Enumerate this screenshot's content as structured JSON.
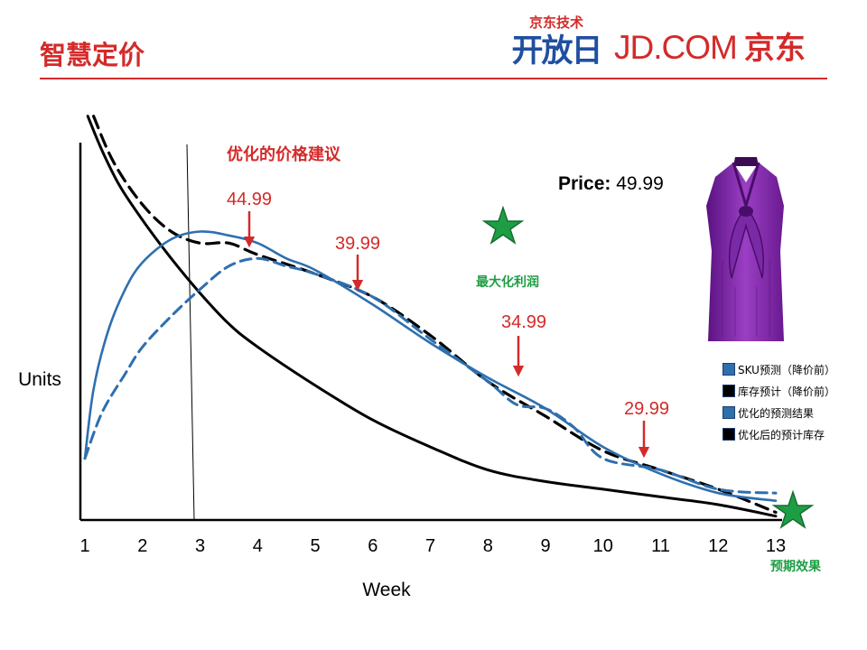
{
  "slide": {
    "title": "智慧定价",
    "logo_tech_top": "京东技术",
    "logo_tech_main": "开放日",
    "logo_en": "JD.COM",
    "logo_cn": "京东",
    "colors": {
      "accent": "#d42a2a",
      "blue": "#2e6fae",
      "green": "#1e9e44",
      "black": "#000000"
    }
  },
  "price": {
    "label": "Price:",
    "value": "49.99"
  },
  "product_image": "purple-blouse-photo",
  "legend": [
    {
      "label": "SKU预测（降价前）",
      "color": "#2e6fae"
    },
    {
      "label": "库存预计（降价前）",
      "color": "#000000"
    },
    {
      "label": "优化的预测结果",
      "color": "#2e6fae"
    },
    {
      "label": "优化后的预计库存",
      "color": "#000000"
    }
  ],
  "chart_data": {
    "type": "line",
    "title": "",
    "xlabel": "Week",
    "ylabel": "Units",
    "x_ticks": [
      "1",
      "2",
      "3",
      "4",
      "5",
      "6",
      "7",
      "8",
      "9",
      "10",
      "11",
      "12",
      "13"
    ],
    "xlim": [
      1,
      13
    ],
    "ylim": [
      0,
      100
    ],
    "grid": false,
    "legend_position": "right",
    "vertical_marker_week": 3,
    "series": [
      {
        "style": "solid-black",
        "x": [
          1.05,
          1.3,
          1.6,
          2,
          2.5,
          3,
          3.5,
          4,
          5,
          6,
          7,
          8,
          9,
          10,
          11,
          12,
          13
        ],
        "y": [
          105,
          96,
          87,
          78,
          68,
          59,
          51,
          45,
          35,
          26,
          19,
          13,
          10,
          8,
          6,
          4,
          1
        ]
      },
      {
        "style": "dashed-black",
        "x": [
          1.15,
          1.5,
          2,
          2.5,
          3,
          3.5,
          4,
          5,
          6,
          7,
          8,
          9,
          10,
          11,
          12,
          13
        ],
        "y": [
          105,
          93,
          82,
          75,
          72,
          72,
          69,
          64,
          58,
          48,
          36,
          27,
          18,
          13,
          8,
          2
        ]
      },
      {
        "style": "solid-blue",
        "x": [
          1,
          1.15,
          1.4,
          1.7,
          2,
          2.5,
          3,
          3.5,
          4,
          4.5,
          5,
          6,
          7,
          8,
          9,
          10,
          11,
          12,
          13
        ],
        "y": [
          16,
          34,
          49,
          60,
          67,
          73,
          75,
          74,
          72,
          68,
          65,
          56,
          46,
          37,
          29,
          19,
          12,
          7,
          5
        ]
      },
      {
        "style": "dashed-blue",
        "x": [
          1,
          1.3,
          1.7,
          2,
          2.5,
          3,
          3.5,
          4,
          4.5,
          5,
          6,
          7,
          8,
          8.5,
          9,
          9.5,
          10,
          11,
          12,
          13
        ],
        "y": [
          16,
          28,
          38,
          45,
          53,
          60,
          66,
          68,
          66,
          64,
          58,
          47,
          36,
          30,
          29,
          24,
          16,
          13,
          8,
          7
        ]
      }
    ],
    "annotations": [
      {
        "text": "优化的价格建议",
        "style": "red-bold"
      },
      {
        "text": "44.99",
        "week": 4,
        "style": "red-arrow"
      },
      {
        "text": "39.99",
        "week": 6,
        "style": "red-arrow"
      },
      {
        "text": "34.99",
        "week": 9,
        "style": "red-arrow"
      },
      {
        "text": "29.99",
        "week": 11,
        "style": "red-arrow"
      },
      {
        "text": "最大化利润",
        "style": "green-star"
      },
      {
        "text": "预期效果",
        "style": "green-star"
      }
    ]
  }
}
